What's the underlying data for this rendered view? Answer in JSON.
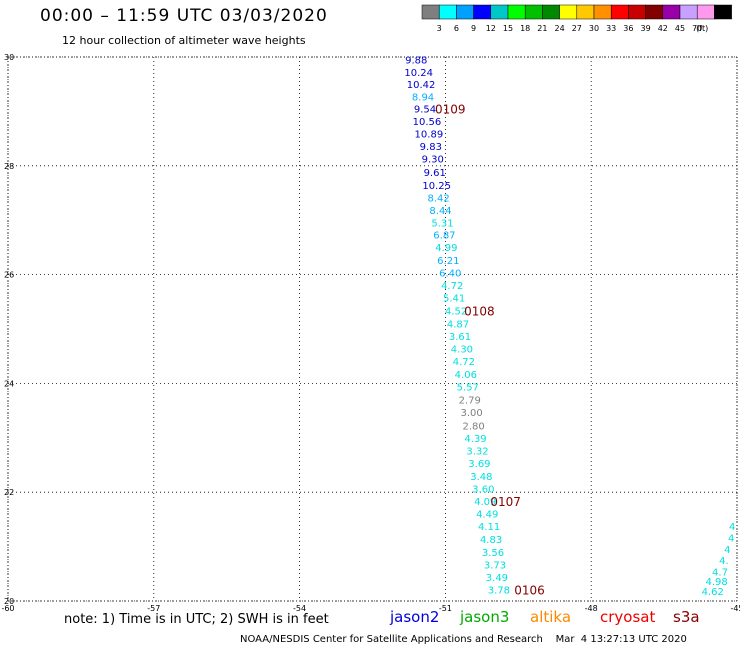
{
  "title": "00:00 – 11:59 UTC 03/03/2020",
  "subtitle": "12 hour collection of altimeter wave heights",
  "legend": {
    "unit": "(ft)",
    "colors": [
      "#7f7f7f",
      "#00ffff",
      "#00a0ff",
      "#0000ff",
      "#00c8c8",
      "#00ff00",
      "#00c000",
      "#008800",
      "#ffff00",
      "#ffc800",
      "#ff9000",
      "#ff0000",
      "#c80000",
      "#820000",
      "#9900aa",
      "#c8a0ff",
      "#ff99ee",
      "#000000"
    ],
    "labels": [
      "3",
      "6",
      "9",
      "12",
      "15",
      "18",
      "21",
      "24",
      "27",
      "30",
      "33",
      "36",
      "39",
      "42",
      "45",
      "70"
    ]
  },
  "note": "note: 1) Time is in UTC; 2) SWH is in feet",
  "credit": "NOAA/NESDIS Center for Satellite Applications and Research    Mar  4 13:27:13 UTC 2020",
  "satellites": [
    {
      "name": "jason2",
      "color": "#0000dd"
    },
    {
      "name": "jason3",
      "color": "#00aa00"
    },
    {
      "name": "altika",
      "color": "#ff8800"
    },
    {
      "name": "cryosat",
      "color": "#ee0000"
    },
    {
      "name": "s3a",
      "color": "#880000"
    }
  ],
  "chart_data": {
    "type": "scatter",
    "xlim": [
      -60,
      -45
    ],
    "ylim": [
      20,
      30
    ],
    "x_ticks": [
      -60,
      -57,
      -54,
      -51,
      -48,
      -45
    ],
    "y_ticks": [
      20,
      22,
      24,
      26,
      28,
      30
    ],
    "grid": true,
    "points": [
      {
        "lon": -51.6,
        "lat": 29.95,
        "value": "9.88",
        "color": "#0000cc"
      },
      {
        "lon": -51.55,
        "lat": 29.72,
        "value": "10.24",
        "color": "#0000cc"
      },
      {
        "lon": -51.5,
        "lat": 29.5,
        "value": "10.42",
        "color": "#0000cc"
      },
      {
        "lon": -51.46,
        "lat": 29.27,
        "value": "8.94",
        "color": "#00b0ff"
      },
      {
        "lon": -51.42,
        "lat": 29.05,
        "value": "9.54",
        "color": "#0000cc"
      },
      {
        "lon": -51.38,
        "lat": 28.82,
        "value": "10.56",
        "color": "#0000cc"
      },
      {
        "lon": -51.34,
        "lat": 28.59,
        "value": "10.89",
        "color": "#0000cc"
      },
      {
        "lon": -51.3,
        "lat": 28.36,
        "value": "9.83",
        "color": "#0000cc"
      },
      {
        "lon": -51.26,
        "lat": 28.13,
        "value": "9.30",
        "color": "#0000cc"
      },
      {
        "lon": -51.22,
        "lat": 27.89,
        "value": "9.61",
        "color": "#0000cc"
      },
      {
        "lon": -51.18,
        "lat": 27.65,
        "value": "10.25",
        "color": "#0000cc"
      },
      {
        "lon": -51.14,
        "lat": 27.42,
        "value": "8.42",
        "color": "#00b0ff"
      },
      {
        "lon": -51.1,
        "lat": 27.19,
        "value": "8.44",
        "color": "#00b0ff"
      },
      {
        "lon": -51.06,
        "lat": 26.96,
        "value": "5.31",
        "color": "#00e0e0"
      },
      {
        "lon": -51.02,
        "lat": 26.74,
        "value": "6.87",
        "color": "#00b0ff"
      },
      {
        "lon": -50.98,
        "lat": 26.51,
        "value": "4.99",
        "color": "#00e0e0"
      },
      {
        "lon": -50.94,
        "lat": 26.27,
        "value": "6.21",
        "color": "#00b0ff"
      },
      {
        "lon": -50.9,
        "lat": 26.04,
        "value": "6.40",
        "color": "#00b0ff"
      },
      {
        "lon": -50.86,
        "lat": 25.81,
        "value": "4.72",
        "color": "#00e0e0"
      },
      {
        "lon": -50.82,
        "lat": 25.58,
        "value": "5.41",
        "color": "#00e0e0"
      },
      {
        "lon": -50.78,
        "lat": 25.34,
        "value": "4.52",
        "color": "#00e0e0"
      },
      {
        "lon": -50.74,
        "lat": 25.1,
        "value": "4.87",
        "color": "#00e0e0"
      },
      {
        "lon": -50.7,
        "lat": 24.87,
        "value": "3.61",
        "color": "#00e0e0"
      },
      {
        "lon": -50.66,
        "lat": 24.64,
        "value": "4.30",
        "color": "#00e0e0"
      },
      {
        "lon": -50.62,
        "lat": 24.41,
        "value": "4.72",
        "color": "#00e0e0"
      },
      {
        "lon": -50.58,
        "lat": 24.17,
        "value": "4.06",
        "color": "#00e0e0"
      },
      {
        "lon": -50.54,
        "lat": 23.94,
        "value": "5.57",
        "color": "#00e0e0"
      },
      {
        "lon": -50.5,
        "lat": 23.7,
        "value": "2.79",
        "color": "#808080"
      },
      {
        "lon": -50.46,
        "lat": 23.47,
        "value": "3.00",
        "color": "#808080"
      },
      {
        "lon": -50.42,
        "lat": 23.23,
        "value": "2.80",
        "color": "#808080"
      },
      {
        "lon": -50.38,
        "lat": 23.0,
        "value": "4.39",
        "color": "#00e0e0"
      },
      {
        "lon": -50.34,
        "lat": 22.77,
        "value": "3.32",
        "color": "#00e0e0"
      },
      {
        "lon": -50.3,
        "lat": 22.54,
        "value": "3.69",
        "color": "#00e0e0"
      },
      {
        "lon": -50.26,
        "lat": 22.3,
        "value": "3.48",
        "color": "#00e0e0"
      },
      {
        "lon": -50.22,
        "lat": 22.07,
        "value": "3.60",
        "color": "#00e0e0"
      },
      {
        "lon": -50.18,
        "lat": 21.84,
        "value": "4.09",
        "color": "#00e0e0"
      },
      {
        "lon": -50.14,
        "lat": 21.61,
        "value": "4.49",
        "color": "#00e0e0"
      },
      {
        "lon": -50.1,
        "lat": 21.38,
        "value": "4.11",
        "color": "#00e0e0"
      },
      {
        "lon": -50.06,
        "lat": 21.14,
        "value": "4.83",
        "color": "#00e0e0"
      },
      {
        "lon": -50.02,
        "lat": 20.9,
        "value": "3.56",
        "color": "#00e0e0"
      },
      {
        "lon": -49.98,
        "lat": 20.67,
        "value": "3.73",
        "color": "#00e0e0"
      },
      {
        "lon": -49.94,
        "lat": 20.44,
        "value": "3.49",
        "color": "#00e0e0"
      },
      {
        "lon": -49.9,
        "lat": 20.21,
        "value": "3.78",
        "color": "#00e0e0"
      }
    ],
    "time_labels": [
      {
        "lon": -50.9,
        "lat": 29.05,
        "text": "0109"
      },
      {
        "lon": -50.3,
        "lat": 25.34,
        "text": "0108"
      },
      {
        "lon": -49.76,
        "lat": 21.84,
        "text": "0107"
      },
      {
        "lon": -49.27,
        "lat": 20.21,
        "text": "0106"
      }
    ],
    "edge_points": [
      {
        "lon": -45.1,
        "lat": 21.38,
        "value": "4",
        "color": "#00e0e0"
      },
      {
        "lon": -45.12,
        "lat": 21.17,
        "value": "4",
        "color": "#00e0e0"
      },
      {
        "lon": -45.2,
        "lat": 20.96,
        "value": "4",
        "color": "#00e0e0"
      },
      {
        "lon": -45.27,
        "lat": 20.75,
        "value": "4.",
        "color": "#00e0e0"
      },
      {
        "lon": -45.35,
        "lat": 20.54,
        "value": "4.7",
        "color": "#00e0e0"
      },
      {
        "lon": -45.42,
        "lat": 20.37,
        "value": "4.98",
        "color": "#00e0e0"
      },
      {
        "lon": -45.5,
        "lat": 20.18,
        "value": "4.62",
        "color": "#00e0e0"
      }
    ]
  }
}
